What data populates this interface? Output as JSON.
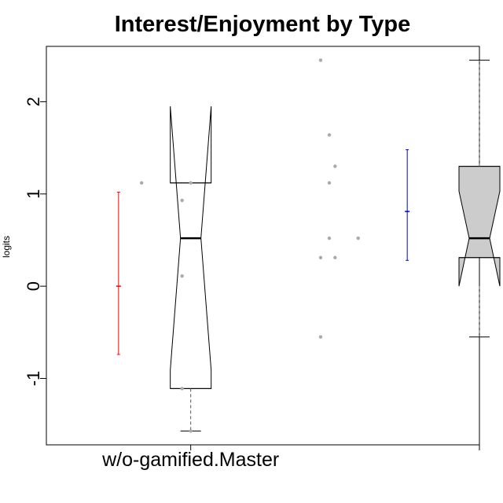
{
  "chart_data": {
    "type": "boxplot",
    "title": "Interest/Enjoyment by Type",
    "ylabel": "logits",
    "xlabel": "",
    "ylim": [
      -1.72,
      2.6
    ],
    "yticks": [
      -1,
      0,
      1,
      2
    ],
    "categories": [
      "w/o-gamified.Master",
      ""
    ],
    "grid": false,
    "legend": "none",
    "colors": {
      "box_fill_1": "#ffffff",
      "box_fill_2": "#cccccc",
      "mean_bar_1": "#ff0000",
      "mean_bar_2": "#0000cc",
      "points": "#aaaaaa",
      "outline": "#000000"
    },
    "series": [
      {
        "q1": -1.11,
        "median": 0.52,
        "q3": 1.12,
        "whisker_low": -1.57,
        "whisker_high": 1.95,
        "notch_low": -0.91,
        "notch_high": 1.95,
        "mean": 0.0,
        "mean_low": -0.74,
        "mean_high": 1.02,
        "points": [
          {
            "x": 0.83,
            "y": 1.12
          },
          {
            "x": 1.0,
            "y": 1.12
          },
          {
            "x": 0.97,
            "y": 0.93
          },
          {
            "x": 0.97,
            "y": 0.11
          },
          {
            "x": 0.97,
            "y": -1.11
          },
          {
            "x": 1.0,
            "y": -1.57
          }
        ]
      },
      {
        "q1": 0.31,
        "median": 0.52,
        "q3": 1.3,
        "whisker_low": -0.55,
        "whisker_high": 2.45,
        "notch_low": 0.0,
        "notch_high": 1.03,
        "mean": 0.81,
        "mean_low": 0.28,
        "mean_high": 1.48,
        "points": [
          {
            "x": 1.45,
            "y": 2.45
          },
          {
            "x": 1.48,
            "y": 1.64
          },
          {
            "x": 1.5,
            "y": 1.3
          },
          {
            "x": 1.48,
            "y": 1.12
          },
          {
            "x": 1.48,
            "y": 0.52
          },
          {
            "x": 1.58,
            "y": 0.52
          },
          {
            "x": 1.45,
            "y": 0.31
          },
          {
            "x": 1.5,
            "y": 0.31
          },
          {
            "x": 1.45,
            "y": -0.55
          }
        ]
      }
    ]
  }
}
